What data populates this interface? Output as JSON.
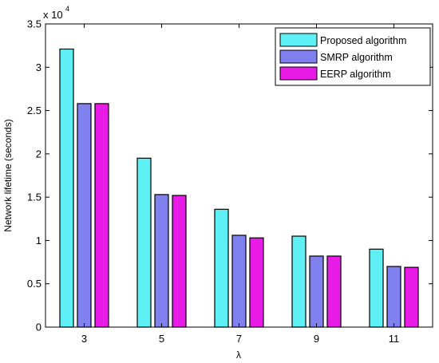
{
  "chart_data": {
    "type": "bar",
    "categories": [
      "3",
      "5",
      "7",
      "9",
      "11"
    ],
    "series": [
      {
        "name": "Proposed algorithm",
        "color": "#5ef0f4",
        "values": [
          32100,
          19500,
          13600,
          10500,
          9000
        ]
      },
      {
        "name": "SMRP algorithm",
        "color": "#8080ee",
        "values": [
          25800,
          15300,
          10600,
          8200,
          7000
        ]
      },
      {
        "name": "EERP algorithm",
        "color": "#e81ce6",
        "values": [
          25800,
          15200,
          10300,
          8200,
          6900
        ]
      }
    ],
    "xlabel": "λ",
    "ylabel": "Network lifetime (seconds)",
    "ylim": [
      0,
      35000
    ],
    "yticks": [
      "0",
      "0.5",
      "1",
      "1.5",
      "2",
      "2.5",
      "3",
      "3.5"
    ],
    "y_multiplier_base": "x 10",
    "y_multiplier_exp": "4",
    "legend_position": "top-right",
    "grid": false
  }
}
